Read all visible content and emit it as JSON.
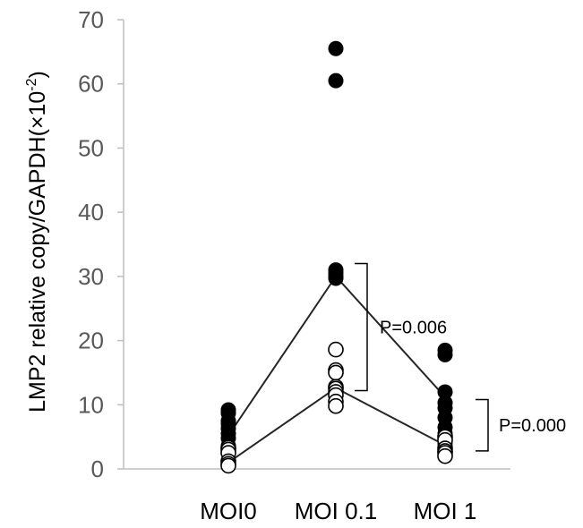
{
  "chart_data": {
    "type": "scatter",
    "ylabel": "LMP2 relative copy/GAPDH(×10",
    "ylabel_exp": "-2",
    "ylabel_close": ")",
    "ylim": [
      0,
      70
    ],
    "yticks": [
      0,
      10,
      20,
      30,
      40,
      50,
      60,
      70
    ],
    "categories": [
      "MOI0",
      "MOI 0.1",
      "MOI 1"
    ],
    "series": [
      {
        "marker": "filled",
        "color": "#000000",
        "points": [
          [
            9.2,
            8.7,
            7.5,
            7.0,
            6.3,
            5.5,
            4.8,
            3.6
          ],
          [
            65.5,
            60.5,
            31.0,
            30.5,
            30.0,
            29.7
          ],
          [
            18.5,
            17.8,
            12.0,
            10.3,
            9.5,
            8.0,
            6.5,
            5.5,
            4.0,
            3.5
          ]
        ]
      },
      {
        "marker": "open",
        "color": "#000000",
        "points": [
          [
            3.3,
            3.0,
            2.5,
            1.2,
            0.8,
            0.5
          ],
          [
            18.6,
            15.4,
            15.0,
            12.8,
            12.5,
            12.0,
            11.5,
            10.5,
            9.8
          ],
          [
            5.0,
            4.5,
            3.2,
            2.8,
            2.5,
            2.0
          ]
        ]
      }
    ],
    "lines": [
      {
        "values": [
          5.2,
          30.0,
          11.2
        ]
      },
      {
        "values": [
          1.0,
          12.6,
          3.7
        ]
      }
    ],
    "annotations": [
      {
        "text": "P=0.006",
        "from": 12.2,
        "to": 32.0,
        "between": "MOI 0.1"
      },
      {
        "text": "P=0.000",
        "from": 2.8,
        "to": 10.8,
        "between": "MOI 1"
      }
    ],
    "grid": false
  }
}
